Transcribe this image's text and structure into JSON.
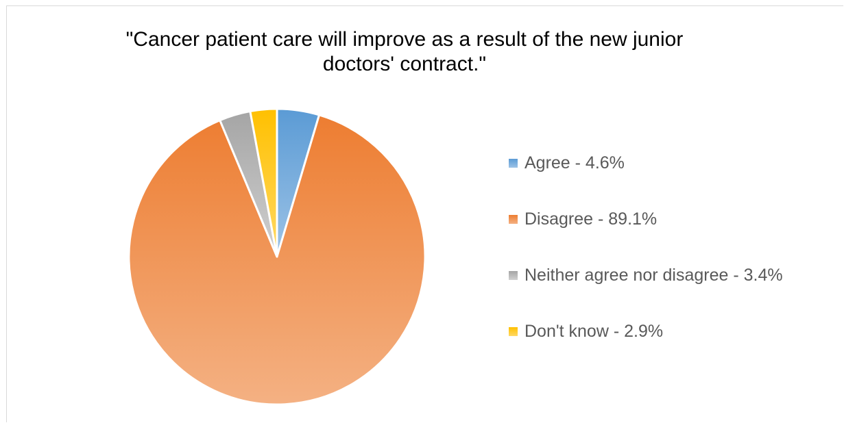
{
  "chart_data": {
    "type": "pie",
    "title": "\"Cancer patient care will improve as a result of the new junior doctors' contract.\"",
    "categories": [
      "Agree",
      "Disagree",
      "Neither agree nor disagree",
      "Don't know"
    ],
    "values": [
      4.6,
      89.1,
      3.4,
      2.9
    ],
    "unit": "%",
    "legend_labels": [
      "Agree - 4.6%",
      "Disagree - 89.1%",
      "Neither agree nor disagree - 3.4%",
      "Don't know - 2.9%"
    ],
    "colors": [
      "#5b9bd5",
      "#ed7d31",
      "#a5a5a5",
      "#ffc000"
    ],
    "colors_light": [
      "#9dc3e6",
      "#f4b183",
      "#d0d0d0",
      "#ffd966"
    ],
    "legend_position": "right"
  }
}
